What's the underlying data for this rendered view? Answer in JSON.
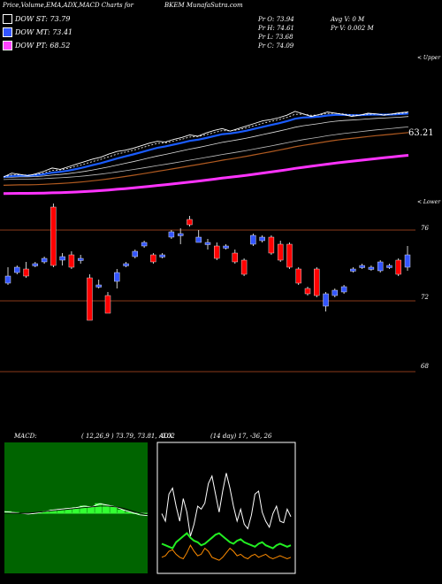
{
  "header": {
    "title": "Price,Volume,EMA,ADX,MACD Charts for",
    "symbol": "BKEM",
    "site": "MunafaSutra.com"
  },
  "legend": [
    {
      "label": "DOW ST: 73.79",
      "color": "#000000"
    },
    {
      "label": "DOW MT: 73.41",
      "color": "#3355ff"
    },
    {
      "label": "DOW PT: 68.52",
      "color": "#ff44ff"
    }
  ],
  "ohlc": {
    "open": "Pr  O: 73.94",
    "high": "Pr  H: 74.61",
    "low": "Pr  L: 73.68",
    "close": "Pr  C: 74.09",
    "avg_volume": "Avg V: 0  M",
    "volume": "Pr  V: 0.002  M"
  },
  "labels": {
    "upper": "< Upper",
    "lower": "< Lower",
    "last_price": "63.21",
    "macd_title": "MACD:",
    "macd_params": "( 12,26,9 ) 73.79,  73.81,  -0.02",
    "adx_title": "ADX",
    "adx_params": "(14  day) 17,  -36,  26"
  },
  "colors": {
    "up": "#3355ff",
    "down": "#ff0000",
    "ema_short": "#ffffff",
    "ema_mid": "#1a5cff",
    "ema_long": "#b05a20",
    "ema_pt": "#ff33ff",
    "grid": "#8a3a1a",
    "macd_bg": "#006400",
    "adx_plus": "#22ee22",
    "adx_minus": "#ff8c00"
  },
  "chart_data": [
    {
      "type": "line",
      "title": "Price, EMA",
      "series": [
        {
          "name": "Price",
          "values": [
            73.0,
            73.6,
            73.4,
            73.2,
            73.5,
            73.9,
            74.4,
            74.2,
            74.6,
            75.0,
            75.4,
            75.8,
            76.1,
            76.6,
            77.0,
            77.2,
            77.5,
            77.9,
            78.3,
            78.6,
            78.5,
            78.9,
            79.2,
            79.6,
            79.4,
            79.9,
            80.3,
            80.6,
            80.2,
            80.6,
            81.0,
            81.4,
            81.8,
            82.0,
            82.3,
            82.7,
            83.3,
            82.9,
            82.5,
            82.8,
            83.2,
            83.0,
            82.8,
            82.5,
            82.7,
            83.0,
            82.9,
            82.7,
            82.9,
            83.1,
            83.2
          ]
        }
      ]
    },
    {
      "type": "bar",
      "title": "Price candles",
      "y_ticks": [
        76,
        72,
        68
      ],
      "ylim": [
        67,
        77.6
      ],
      "candles": [
        {
          "o": 73.4,
          "c": 73.0,
          "h": 73.9,
          "l": 72.9,
          "dir": "up"
        },
        {
          "o": 73.9,
          "c": 73.6,
          "h": 74.0,
          "l": 73.5,
          "dir": "up"
        },
        {
          "o": 73.8,
          "c": 73.4,
          "h": 74.2,
          "l": 73.3,
          "dir": "down"
        },
        {
          "o": 74.0,
          "c": 74.1,
          "h": 74.2,
          "l": 73.9,
          "dir": "up"
        },
        {
          "o": 74.2,
          "c": 74.4,
          "h": 74.5,
          "l": 74.1,
          "dir": "up"
        },
        {
          "o": 77.3,
          "c": 74.0,
          "h": 77.5,
          "l": 73.9,
          "dir": "down"
        },
        {
          "o": 74.3,
          "c": 74.5,
          "h": 74.7,
          "l": 74.0,
          "dir": "up"
        },
        {
          "o": 74.6,
          "c": 73.9,
          "h": 74.8,
          "l": 73.8,
          "dir": "down"
        },
        {
          "o": 74.3,
          "c": 74.4,
          "h": 74.6,
          "l": 74.1,
          "dir": "up"
        },
        {
          "o": 73.3,
          "c": 70.9,
          "h": 73.5,
          "l": 70.9,
          "dir": "down"
        },
        {
          "o": 72.9,
          "c": 72.9,
          "h": 73.2,
          "l": 72.7,
          "dir": "up"
        },
        {
          "o": 72.3,
          "c": 71.3,
          "h": 72.5,
          "l": 71.3,
          "dir": "down"
        },
        {
          "o": 73.1,
          "c": 73.6,
          "h": 73.8,
          "l": 72.7,
          "dir": "up"
        },
        {
          "o": 74.0,
          "c": 74.1,
          "h": 74.2,
          "l": 73.9,
          "dir": "up"
        },
        {
          "o": 74.5,
          "c": 74.8,
          "h": 74.9,
          "l": 74.4,
          "dir": "up"
        },
        {
          "o": 75.1,
          "c": 75.3,
          "h": 75.4,
          "l": 75.0,
          "dir": "up"
        },
        {
          "o": 74.6,
          "c": 74.2,
          "h": 74.7,
          "l": 74.1,
          "dir": "down"
        },
        {
          "o": 74.5,
          "c": 74.6,
          "h": 74.7,
          "l": 74.4,
          "dir": "up"
        },
        {
          "o": 75.6,
          "c": 75.9,
          "h": 76.0,
          "l": 75.5,
          "dir": "up"
        },
        {
          "o": 75.7,
          "c": 75.8,
          "h": 76.1,
          "l": 75.2,
          "dir": "up"
        },
        {
          "o": 76.6,
          "c": 76.3,
          "h": 76.8,
          "l": 76.2,
          "dir": "down"
        },
        {
          "o": 75.3,
          "c": 75.6,
          "h": 76.0,
          "l": 75.3,
          "dir": "up"
        },
        {
          "o": 75.3,
          "c": 75.2,
          "h": 75.5,
          "l": 74.9,
          "dir": "up"
        },
        {
          "o": 75.1,
          "c": 74.4,
          "h": 75.3,
          "l": 74.3,
          "dir": "down"
        },
        {
          "o": 75.0,
          "c": 75.1,
          "h": 75.2,
          "l": 74.9,
          "dir": "up"
        },
        {
          "o": 74.7,
          "c": 74.2,
          "h": 74.9,
          "l": 74.1,
          "dir": "down"
        },
        {
          "o": 74.3,
          "c": 73.5,
          "h": 74.4,
          "l": 73.4,
          "dir": "down"
        },
        {
          "o": 75.2,
          "c": 75.7,
          "h": 75.8,
          "l": 75.1,
          "dir": "up"
        },
        {
          "o": 75.4,
          "c": 75.6,
          "h": 75.7,
          "l": 75.3,
          "dir": "up"
        },
        {
          "o": 75.6,
          "c": 74.7,
          "h": 75.7,
          "l": 74.6,
          "dir": "down"
        },
        {
          "o": 75.2,
          "c": 74.3,
          "h": 75.4,
          "l": 74.2,
          "dir": "down"
        },
        {
          "o": 75.2,
          "c": 73.9,
          "h": 75.3,
          "l": 73.8,
          "dir": "down"
        },
        {
          "o": 73.8,
          "c": 73.0,
          "h": 73.9,
          "l": 72.9,
          "dir": "down"
        },
        {
          "o": 72.7,
          "c": 72.4,
          "h": 72.8,
          "l": 72.3,
          "dir": "down"
        },
        {
          "o": 73.8,
          "c": 72.3,
          "h": 73.9,
          "l": 72.2,
          "dir": "down"
        },
        {
          "o": 71.7,
          "c": 72.4,
          "h": 72.5,
          "l": 71.4,
          "dir": "up"
        },
        {
          "o": 72.3,
          "c": 72.6,
          "h": 72.7,
          "l": 72.2,
          "dir": "up"
        },
        {
          "o": 72.5,
          "c": 72.8,
          "h": 72.9,
          "l": 72.4,
          "dir": "up"
        },
        {
          "o": 73.7,
          "c": 73.8,
          "h": 73.9,
          "l": 73.6,
          "dir": "up"
        },
        {
          "o": 73.9,
          "c": 74.0,
          "h": 74.1,
          "l": 73.8,
          "dir": "up"
        },
        {
          "o": 73.8,
          "c": 73.9,
          "h": 74.0,
          "l": 73.7,
          "dir": "up"
        },
        {
          "o": 73.7,
          "c": 74.2,
          "h": 74.3,
          "l": 73.6,
          "dir": "up"
        },
        {
          "o": 74.0,
          "c": 73.9,
          "h": 74.1,
          "l": 73.8,
          "dir": "up"
        },
        {
          "o": 74.3,
          "c": 73.5,
          "h": 74.4,
          "l": 73.4,
          "dir": "down"
        },
        {
          "o": 73.9,
          "c": 74.6,
          "h": 75.1,
          "l": 73.7,
          "dir": "up"
        }
      ]
    },
    {
      "type": "line",
      "title": "MACD",
      "series": [
        {
          "name": "MACD",
          "values": [
            0.2,
            0.1,
            0.0,
            -0.1,
            0.0,
            0.2,
            0.4,
            0.5,
            0.6,
            0.7,
            0.9,
            0.8,
            1.2,
            1.0,
            0.8,
            0.4,
            0.1,
            -0.2,
            -0.3
          ]
        },
        {
          "name": "Signal",
          "values": [
            0.0,
            0.0,
            0.0,
            0.0,
            0.1,
            0.2,
            0.3,
            0.4,
            0.5,
            0.6,
            0.7,
            0.8,
            0.9,
            0.9,
            0.8,
            0.6,
            0.3,
            0.0,
            -0.2
          ]
        }
      ]
    },
    {
      "type": "line",
      "title": "ADX",
      "series": [
        {
          "name": "ADX",
          "values": [
            35,
            30,
            48,
            52,
            40,
            30,
            45,
            36,
            20,
            28,
            40,
            38,
            42,
            55,
            60,
            48,
            36,
            50,
            62,
            52,
            40,
            30,
            38,
            28,
            25,
            34,
            48,
            50,
            36,
            30,
            26,
            35,
            40,
            30,
            29,
            38,
            33
          ]
        },
        {
          "name": "+DI",
          "values": [
            15,
            14,
            13,
            12,
            16,
            18,
            20,
            22,
            19,
            17,
            16,
            14,
            15,
            17,
            19,
            21,
            22,
            20,
            18,
            16,
            15,
            17,
            18,
            16,
            15,
            14,
            13,
            15,
            16,
            14,
            13,
            12,
            14,
            15,
            14,
            13,
            14
          ]
        },
        {
          "name": "-DI",
          "values": [
            6,
            7,
            10,
            11,
            8,
            6,
            5,
            9,
            14,
            10,
            7,
            8,
            12,
            10,
            6,
            5,
            4,
            6,
            9,
            12,
            10,
            7,
            8,
            6,
            5,
            7,
            8,
            6,
            7,
            8,
            6,
            5,
            6,
            7,
            6,
            5,
            6
          ]
        }
      ]
    }
  ]
}
